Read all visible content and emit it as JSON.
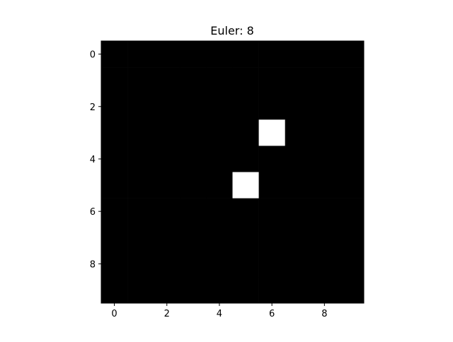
{
  "chart_data": {
    "type": "heatmap",
    "title": "Euler: 8",
    "rows": 10,
    "cols": 10,
    "colormap": "gray",
    "value_colors": {
      "0": "#000000",
      "1": "#ffffff"
    },
    "grid": [
      [
        0,
        0,
        0,
        0,
        0,
        0,
        0,
        0,
        0,
        0
      ],
      [
        0,
        0,
        0,
        0,
        0,
        0,
        0,
        0,
        0,
        0
      ],
      [
        0,
        0,
        0,
        0,
        0,
        0,
        0,
        0,
        0,
        0
      ],
      [
        0,
        0,
        0,
        0,
        0,
        0,
        1,
        0,
        0,
        0
      ],
      [
        0,
        0,
        0,
        0,
        0,
        0,
        0,
        0,
        0,
        0
      ],
      [
        0,
        0,
        0,
        0,
        0,
        1,
        0,
        0,
        0,
        0
      ],
      [
        0,
        0,
        0,
        0,
        0,
        0,
        0,
        0,
        0,
        0
      ],
      [
        0,
        0,
        0,
        0,
        0,
        0,
        0,
        0,
        0,
        0
      ],
      [
        0,
        0,
        0,
        0,
        0,
        0,
        0,
        0,
        0,
        0
      ],
      [
        0,
        0,
        0,
        0,
        0,
        0,
        0,
        0,
        0,
        0
      ]
    ],
    "xticks": [
      0,
      2,
      4,
      6,
      8
    ],
    "yticks": [
      0,
      2,
      4,
      6,
      8
    ],
    "xlim": [
      -0.5,
      9.5
    ],
    "ylim": [
      9.5,
      -0.5
    ],
    "grid_lines": false
  }
}
